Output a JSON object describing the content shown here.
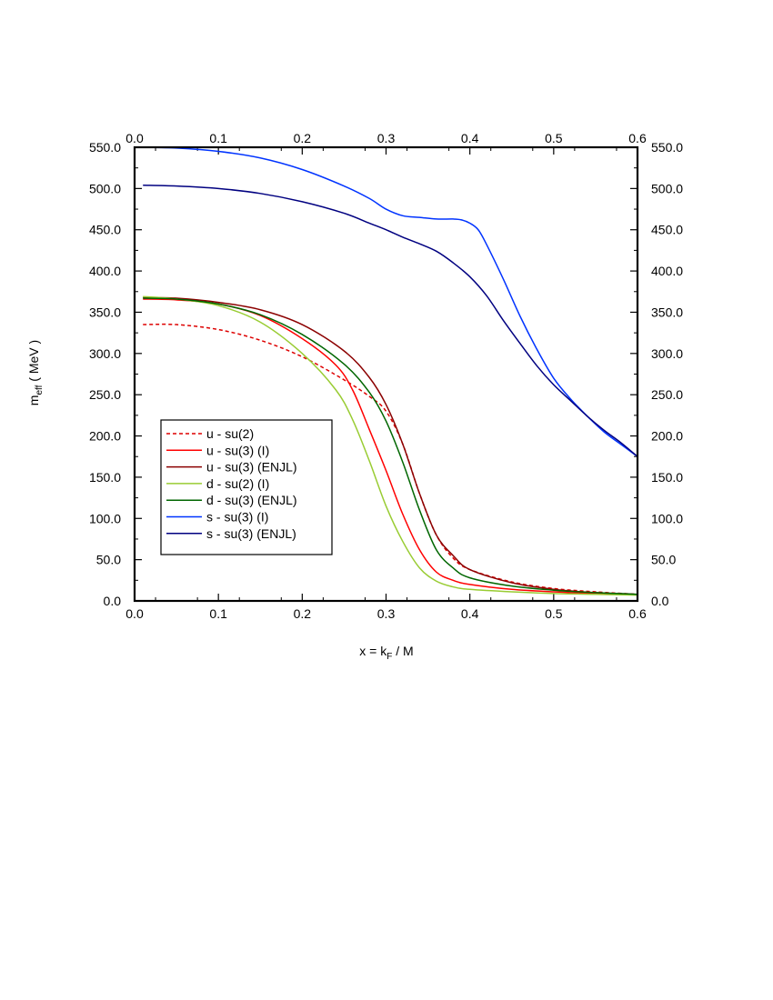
{
  "chart_data": {
    "type": "line",
    "xlabel": {
      "main": "x = k",
      "sub": "F",
      "rest": " / M"
    },
    "ylabel": {
      "main": "m",
      "sub": "eff",
      "rest": " ( MeV )"
    },
    "xlim": [
      0.0,
      0.6
    ],
    "ylim": [
      0.0,
      550.0
    ],
    "x_ticks": [
      "0.0",
      "0.1",
      "0.2",
      "0.3",
      "0.4",
      "0.5",
      "0.6"
    ],
    "y_ticks": [
      "0.0",
      "50.0",
      "100.0",
      "150.0",
      "200.0",
      "250.0",
      "300.0",
      "350.0",
      "400.0",
      "450.0",
      "500.0",
      "550.0"
    ],
    "grid": false,
    "legend_position": "bottom-left",
    "series": [
      {
        "name": "u - su(2)",
        "color": "#dd0000",
        "dash": true,
        "points": [
          [
            0.01,
            335
          ],
          [
            0.05,
            335
          ],
          [
            0.1,
            329
          ],
          [
            0.15,
            316
          ],
          [
            0.2,
            296
          ],
          [
            0.25,
            268
          ],
          [
            0.28,
            248
          ],
          [
            0.3,
            230
          ],
          [
            0.32,
            190
          ],
          [
            0.34,
            130
          ],
          [
            0.36,
            80
          ],
          [
            0.38,
            52
          ],
          [
            0.4,
            38
          ],
          [
            0.45,
            23
          ],
          [
            0.5,
            15
          ],
          [
            0.55,
            11
          ],
          [
            0.6,
            8
          ]
        ]
      },
      {
        "name": "u - su(3) (I)",
        "color": "#ff0000",
        "dash": false,
        "points": [
          [
            0.01,
            366
          ],
          [
            0.05,
            365
          ],
          [
            0.1,
            360
          ],
          [
            0.15,
            346
          ],
          [
            0.2,
            318
          ],
          [
            0.24,
            286
          ],
          [
            0.26,
            256
          ],
          [
            0.28,
            208
          ],
          [
            0.3,
            158
          ],
          [
            0.32,
            105
          ],
          [
            0.34,
            62
          ],
          [
            0.36,
            35
          ],
          [
            0.38,
            25
          ],
          [
            0.4,
            20
          ],
          [
            0.45,
            14
          ],
          [
            0.5,
            11
          ],
          [
            0.55,
            9
          ],
          [
            0.6,
            8
          ]
        ]
      },
      {
        "name": "u - su(3) (ENJL)",
        "color": "#8b0000",
        "dash": false,
        "points": [
          [
            0.01,
            368
          ],
          [
            0.05,
            367
          ],
          [
            0.1,
            362
          ],
          [
            0.15,
            353
          ],
          [
            0.2,
            335
          ],
          [
            0.25,
            303
          ],
          [
            0.28,
            271
          ],
          [
            0.3,
            238
          ],
          [
            0.32,
            190
          ],
          [
            0.34,
            130
          ],
          [
            0.36,
            80
          ],
          [
            0.38,
            55
          ],
          [
            0.4,
            38
          ],
          [
            0.45,
            22
          ],
          [
            0.5,
            14
          ],
          [
            0.55,
            10
          ],
          [
            0.6,
            8
          ]
        ]
      },
      {
        "name": "d - su(2) (I)",
        "color": "#99cc33",
        "dash": false,
        "points": [
          [
            0.01,
            369
          ],
          [
            0.05,
            366
          ],
          [
            0.1,
            358
          ],
          [
            0.15,
            338
          ],
          [
            0.2,
            300
          ],
          [
            0.24,
            256
          ],
          [
            0.26,
            220
          ],
          [
            0.28,
            170
          ],
          [
            0.3,
            115
          ],
          [
            0.32,
            72
          ],
          [
            0.34,
            40
          ],
          [
            0.36,
            24
          ],
          [
            0.38,
            17
          ],
          [
            0.4,
            14
          ],
          [
            0.45,
            11
          ],
          [
            0.5,
            9
          ],
          [
            0.55,
            8
          ],
          [
            0.6,
            7
          ]
        ]
      },
      {
        "name": "d - su(3) (ENJL)",
        "color": "#006600",
        "dash": false,
        "points": [
          [
            0.01,
            367
          ],
          [
            0.05,
            366
          ],
          [
            0.1,
            360
          ],
          [
            0.15,
            347
          ],
          [
            0.2,
            323
          ],
          [
            0.25,
            287
          ],
          [
            0.28,
            253
          ],
          [
            0.3,
            218
          ],
          [
            0.32,
            168
          ],
          [
            0.34,
            110
          ],
          [
            0.36,
            62
          ],
          [
            0.38,
            40
          ],
          [
            0.4,
            28
          ],
          [
            0.45,
            18
          ],
          [
            0.5,
            13
          ],
          [
            0.55,
            10
          ],
          [
            0.6,
            8
          ]
        ]
      },
      {
        "name": "s - su(3) (I)",
        "color": "#0033ff",
        "dash": false,
        "points": [
          [
            0.01,
            550
          ],
          [
            0.05,
            549
          ],
          [
            0.1,
            545
          ],
          [
            0.15,
            537
          ],
          [
            0.2,
            523
          ],
          [
            0.25,
            503
          ],
          [
            0.28,
            488
          ],
          [
            0.3,
            475
          ],
          [
            0.32,
            467
          ],
          [
            0.34,
            465
          ],
          [
            0.36,
            463
          ],
          [
            0.38,
            463
          ],
          [
            0.39,
            462
          ],
          [
            0.4,
            458
          ],
          [
            0.41,
            450
          ],
          [
            0.42,
            432
          ],
          [
            0.44,
            390
          ],
          [
            0.46,
            345
          ],
          [
            0.48,
            305
          ],
          [
            0.5,
            270
          ],
          [
            0.52,
            245
          ],
          [
            0.54,
            224
          ],
          [
            0.56,
            205
          ],
          [
            0.58,
            190
          ],
          [
            0.6,
            175
          ]
        ]
      },
      {
        "name": "s - su(3) (ENJL)",
        "color": "#000080",
        "dash": false,
        "points": [
          [
            0.01,
            504
          ],
          [
            0.05,
            503
          ],
          [
            0.1,
            500
          ],
          [
            0.15,
            494
          ],
          [
            0.2,
            484
          ],
          [
            0.25,
            470
          ],
          [
            0.28,
            458
          ],
          [
            0.3,
            450
          ],
          [
            0.32,
            441
          ],
          [
            0.34,
            433
          ],
          [
            0.36,
            424
          ],
          [
            0.38,
            410
          ],
          [
            0.4,
            393
          ],
          [
            0.42,
            370
          ],
          [
            0.44,
            340
          ],
          [
            0.46,
            312
          ],
          [
            0.48,
            285
          ],
          [
            0.5,
            262
          ],
          [
            0.52,
            243
          ],
          [
            0.54,
            224
          ],
          [
            0.56,
            207
          ],
          [
            0.58,
            192
          ],
          [
            0.6,
            175
          ]
        ]
      }
    ]
  }
}
